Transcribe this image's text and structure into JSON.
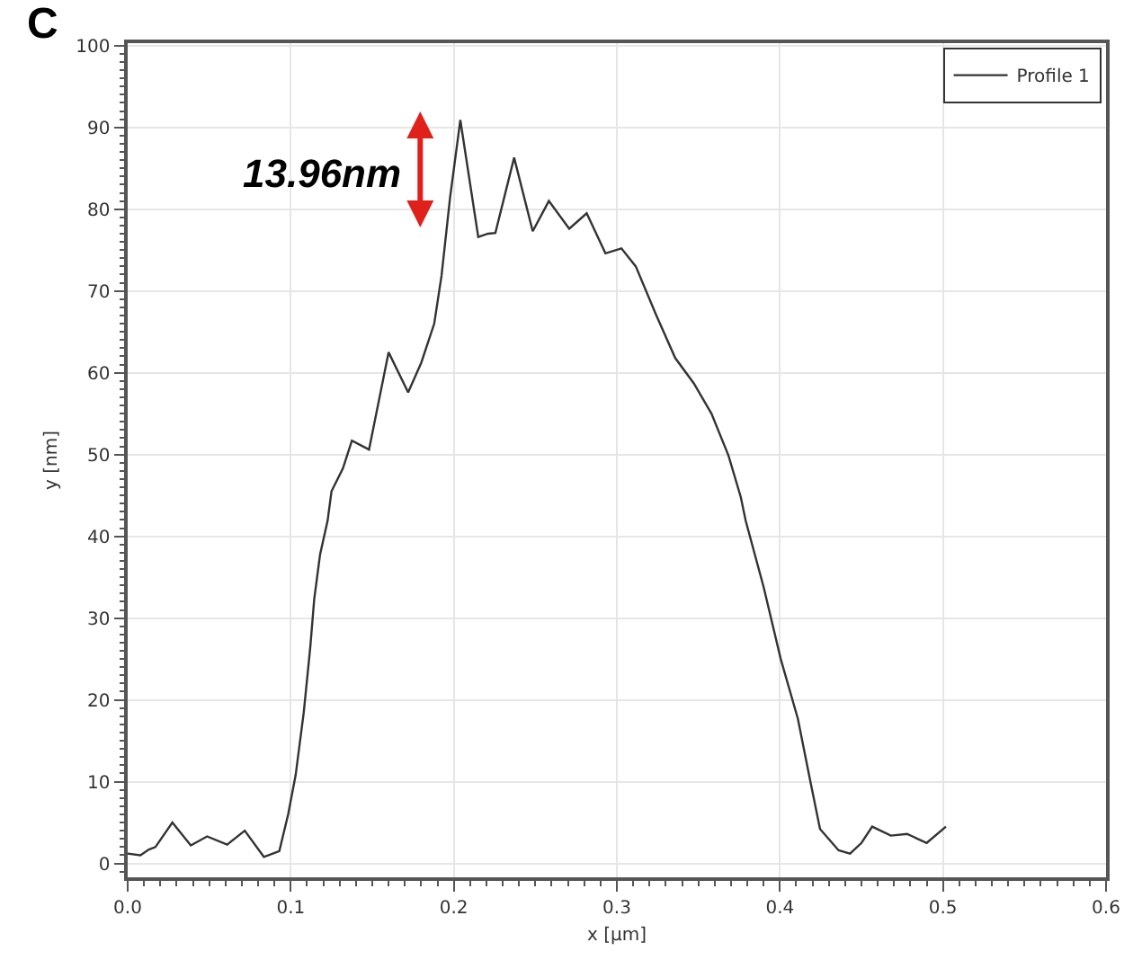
{
  "chart_data": {
    "type": "line",
    "xlabel": "x [µm]",
    "ylabel": "y [nm]",
    "x": [
      0,
      0.0078,
      0.013,
      0.017,
      0.0274,
      0.0387,
      0.0487,
      0.061,
      0.0718,
      0.0835,
      0.093,
      0.0984,
      0.103,
      0.108,
      0.112,
      0.1144,
      0.118,
      0.1226,
      0.125,
      0.132,
      0.1375,
      0.148,
      0.16,
      0.172,
      0.18,
      0.188,
      0.1925,
      0.1977,
      0.204,
      0.215,
      0.221,
      0.2255,
      0.237,
      0.2484,
      0.2583,
      0.2708,
      0.2815,
      0.293,
      0.3028,
      0.3116,
      0.324,
      0.3358,
      0.3472,
      0.358,
      0.3684,
      0.376,
      0.379,
      0.39,
      0.4005,
      0.411,
      0.4183,
      0.4246,
      0.436,
      0.443,
      0.45,
      0.4566,
      0.468,
      0.478,
      0.49,
      0.5018
    ],
    "series": [
      {
        "name": "Profile 1",
        "color": "#333333",
        "values": [
          1.2,
          1.0,
          1.7,
          2.0,
          5.0,
          2.2,
          3.3,
          2.3,
          4.0,
          0.8,
          1.5,
          6.0,
          10.8,
          18.5,
          26.5,
          32.3,
          37.8,
          41.9,
          45.5,
          48.3,
          51.7,
          50.6,
          62.5,
          57.6,
          61.2,
          66.0,
          71.9,
          81.4,
          90.9,
          76.6,
          77.0,
          77.1,
          86.3,
          77.3,
          81.0,
          77.6,
          79.5,
          74.6,
          75.2,
          73.0,
          67.1,
          61.8,
          58.7,
          55.0,
          49.9,
          44.8,
          41.9,
          33.8,
          25.0,
          17.7,
          10.4,
          4.2,
          1.6,
          1.2,
          2.5,
          4.5,
          3.4,
          3.6,
          2.5,
          4.5
        ]
      }
    ],
    "xlim": [
      0,
      0.6
    ],
    "xticks": [
      {
        "value": 0,
        "label": "0.0"
      },
      0.1,
      0.2,
      0.3,
      0.4,
      0.5,
      0.6
    ],
    "ylim": [
      -1.7,
      100.3
    ],
    "yticks": [
      0,
      10,
      20,
      30,
      40,
      50,
      60,
      70,
      80,
      90,
      100
    ],
    "grid": true,
    "legend": "top right",
    "marker": "none",
    "line_style": "solid",
    "annotations": [
      "C",
      "13.96nm"
    ]
  }
}
